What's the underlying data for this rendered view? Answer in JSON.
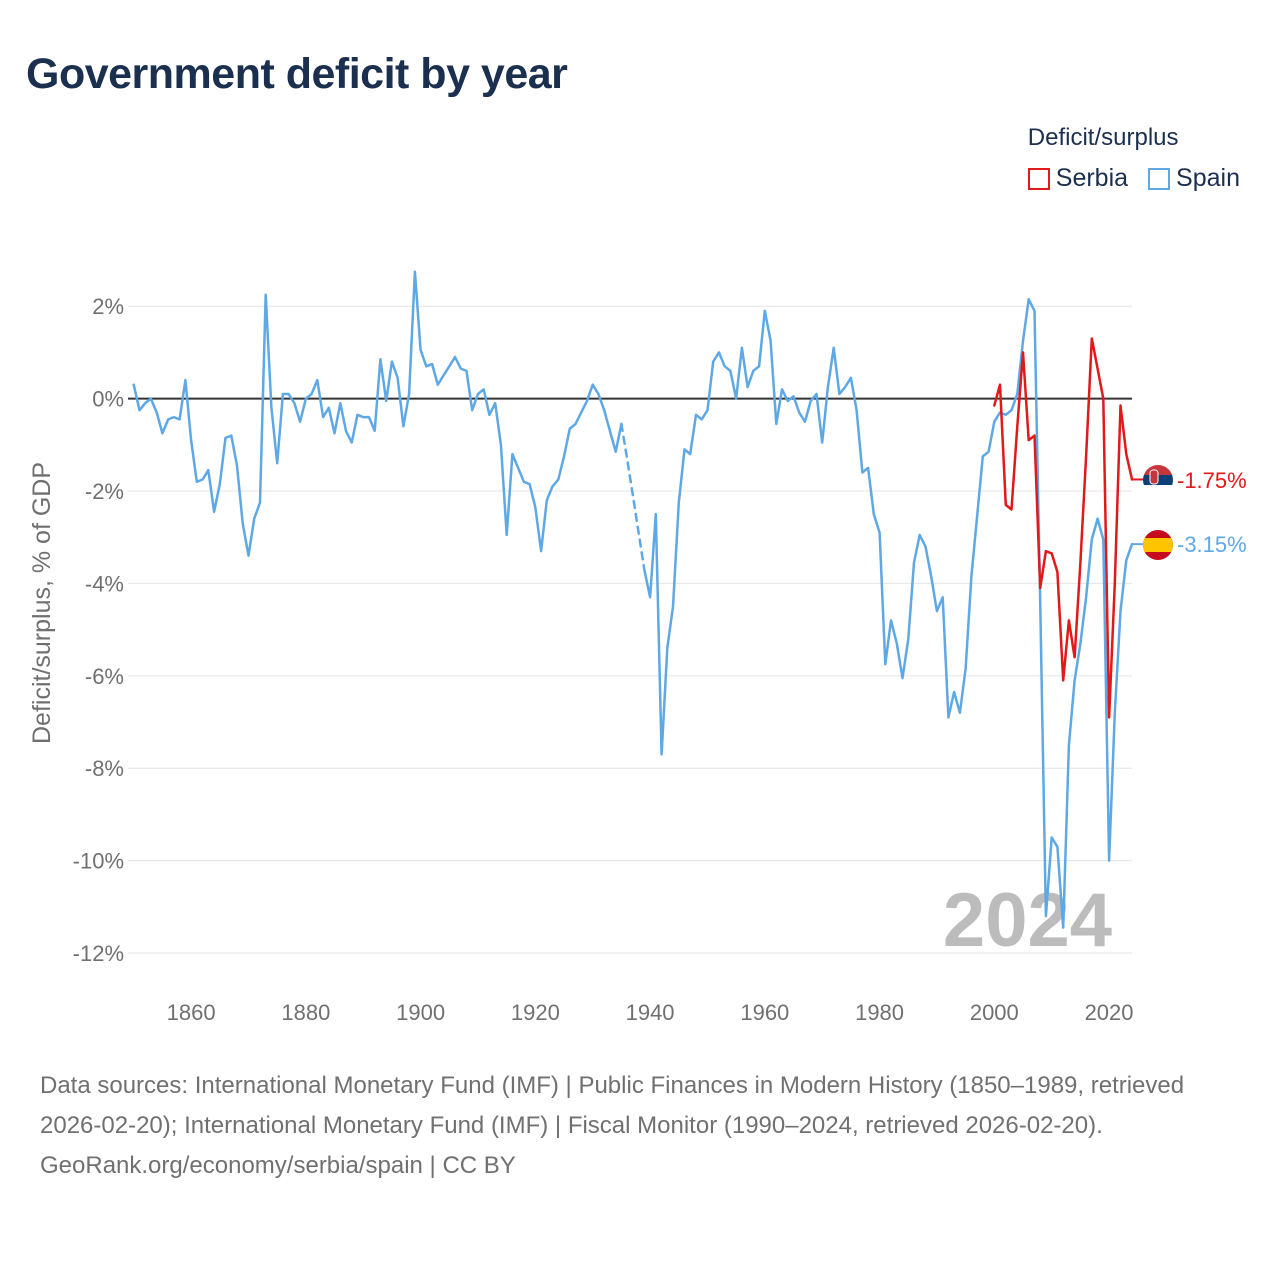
{
  "chart_data": {
    "type": "line",
    "title": "Government deficit by year",
    "ylabel": "Deficit/surplus, % of GDP",
    "xlabel": "",
    "xlim": [
      1849,
      2024
    ],
    "ylim": [
      -12.8,
      3.0
    ],
    "x_ticks": [
      1860,
      1880,
      1900,
      1920,
      1940,
      1960,
      1980,
      2000,
      2020
    ],
    "y_ticks": [
      2,
      0,
      -2,
      -4,
      -6,
      -8,
      -10,
      -12
    ],
    "x_tick_labels": [
      "1860",
      "1880",
      "1900",
      "1920",
      "1940",
      "1960",
      "1980",
      "2000",
      "2020"
    ],
    "y_tick_labels": [
      "2%",
      "0%",
      "-2%",
      "-4%",
      "-6%",
      "-8%",
      "-10%",
      "-12%"
    ],
    "watermark_year": "2024",
    "legend_title": "Deficit/surplus",
    "series": [
      {
        "name": "Serbia",
        "color": "#e0191a",
        "end_label": "-1.75%",
        "points": [
          [
            2000,
            -0.15
          ],
          [
            2001,
            0.3
          ],
          [
            2002,
            -2.3
          ],
          [
            2003,
            -2.4
          ],
          [
            2004,
            -0.6
          ],
          [
            2005,
            1.0
          ],
          [
            2006,
            -0.9
          ],
          [
            2007,
            -0.8
          ],
          [
            2008,
            -4.1
          ],
          [
            2009,
            -3.3
          ],
          [
            2010,
            -3.35
          ],
          [
            2011,
            -3.75
          ],
          [
            2012,
            -6.1
          ],
          [
            2013,
            -4.8
          ],
          [
            2014,
            -5.6
          ],
          [
            2015,
            -3.55
          ],
          [
            2016,
            -1.25
          ],
          [
            2017,
            1.3
          ],
          [
            2018,
            0.65
          ],
          [
            2019,
            0.0
          ],
          [
            2020,
            -6.9
          ],
          [
            2021,
            -4.0
          ],
          [
            2022,
            -0.15
          ],
          [
            2023,
            -1.2
          ],
          [
            2024,
            -1.75
          ]
        ]
      },
      {
        "name": "Spain",
        "color": "#5ea8e6",
        "end_label": "-3.15%",
        "points": [
          [
            1850,
            0.3
          ],
          [
            1851,
            -0.25
          ],
          [
            1852,
            -0.1
          ],
          [
            1853,
            0.0
          ],
          [
            1854,
            -0.3
          ],
          [
            1855,
            -0.75
          ],
          [
            1856,
            -0.45
          ],
          [
            1857,
            -0.4
          ],
          [
            1858,
            -0.45
          ],
          [
            1859,
            0.4
          ],
          [
            1860,
            -0.9
          ],
          [
            1861,
            -1.8
          ],
          [
            1862,
            -1.75
          ],
          [
            1863,
            -1.55
          ],
          [
            1864,
            -2.45
          ],
          [
            1865,
            -1.85
          ],
          [
            1866,
            -0.85
          ],
          [
            1867,
            -0.8
          ],
          [
            1868,
            -1.45
          ],
          [
            1869,
            -2.7
          ],
          [
            1870,
            -3.4
          ],
          [
            1871,
            -2.6
          ],
          [
            1872,
            -2.25
          ],
          [
            1873,
            2.25
          ],
          [
            1874,
            -0.2
          ],
          [
            1875,
            -1.4
          ],
          [
            1876,
            0.1
          ],
          [
            1877,
            0.1
          ],
          [
            1878,
            -0.1
          ],
          [
            1879,
            -0.5
          ],
          [
            1880,
            0.0
          ],
          [
            1881,
            0.1
          ],
          [
            1882,
            0.4
          ],
          [
            1883,
            -0.4
          ],
          [
            1884,
            -0.2
          ],
          [
            1885,
            -0.75
          ],
          [
            1886,
            -0.1
          ],
          [
            1887,
            -0.7
          ],
          [
            1888,
            -0.95
          ],
          [
            1889,
            -0.35
          ],
          [
            1890,
            -0.4
          ],
          [
            1891,
            -0.4
          ],
          [
            1892,
            -0.7
          ],
          [
            1893,
            0.85
          ],
          [
            1894,
            -0.05
          ],
          [
            1895,
            0.8
          ],
          [
            1896,
            0.45
          ],
          [
            1897,
            -0.6
          ],
          [
            1898,
            0.1
          ],
          [
            1899,
            2.75
          ],
          [
            1900,
            1.05
          ],
          [
            1901,
            0.7
          ],
          [
            1902,
            0.75
          ],
          [
            1903,
            0.3
          ],
          [
            1904,
            0.5
          ],
          [
            1905,
            0.7
          ],
          [
            1906,
            0.9
          ],
          [
            1907,
            0.65
          ],
          [
            1908,
            0.6
          ],
          [
            1909,
            -0.25
          ],
          [
            1910,
            0.1
          ],
          [
            1911,
            0.2
          ],
          [
            1912,
            -0.35
          ],
          [
            1913,
            -0.1
          ],
          [
            1914,
            -1.0
          ],
          [
            1915,
            -2.95
          ],
          [
            1916,
            -1.2
          ],
          [
            1917,
            -1.5
          ],
          [
            1918,
            -1.8
          ],
          [
            1919,
            -1.85
          ],
          [
            1920,
            -2.35
          ],
          [
            1921,
            -3.3
          ],
          [
            1922,
            -2.2
          ],
          [
            1923,
            -1.9
          ],
          [
            1924,
            -1.75
          ],
          [
            1925,
            -1.25
          ],
          [
            1926,
            -0.65
          ],
          [
            1927,
            -0.55
          ],
          [
            1928,
            -0.3
          ],
          [
            1929,
            -0.05
          ],
          [
            1930,
            0.3
          ],
          [
            1931,
            0.1
          ],
          [
            1932,
            -0.25
          ],
          [
            1933,
            -0.7
          ],
          [
            1934,
            -1.15
          ],
          [
            1935,
            -0.55
          ]
        ],
        "gap_points": [
          [
            1935,
            -0.55
          ],
          [
            1936,
            -1.3
          ],
          [
            1937,
            -2.1
          ],
          [
            1938,
            -2.9
          ],
          [
            1939,
            -3.7
          ]
        ],
        "points_after_gap": [
          [
            1939,
            -3.7
          ],
          [
            1940,
            -4.3
          ],
          [
            1941,
            -2.5
          ],
          [
            1942,
            -7.7
          ],
          [
            1943,
            -5.4
          ],
          [
            1944,
            -4.5
          ],
          [
            1945,
            -2.25
          ],
          [
            1946,
            -1.1
          ],
          [
            1947,
            -1.2
          ],
          [
            1948,
            -0.35
          ],
          [
            1949,
            -0.45
          ],
          [
            1950,
            -0.25
          ],
          [
            1951,
            0.8
          ],
          [
            1952,
            1.0
          ],
          [
            1953,
            0.7
          ],
          [
            1954,
            0.6
          ],
          [
            1955,
            0.0
          ],
          [
            1956,
            1.1
          ],
          [
            1957,
            0.25
          ],
          [
            1958,
            0.6
          ],
          [
            1959,
            0.7
          ],
          [
            1960,
            1.9
          ],
          [
            1961,
            1.25
          ],
          [
            1962,
            -0.55
          ],
          [
            1963,
            0.2
          ],
          [
            1964,
            -0.05
          ],
          [
            1965,
            0.05
          ],
          [
            1966,
            -0.3
          ],
          [
            1967,
            -0.5
          ],
          [
            1968,
            -0.05
          ],
          [
            1969,
            0.1
          ],
          [
            1970,
            -0.95
          ],
          [
            1971,
            0.25
          ],
          [
            1972,
            1.1
          ],
          [
            1973,
            0.1
          ],
          [
            1974,
            0.25
          ],
          [
            1975,
            0.45
          ],
          [
            1976,
            -0.25
          ],
          [
            1977,
            -1.6
          ],
          [
            1978,
            -1.5
          ],
          [
            1979,
            -2.5
          ],
          [
            1980,
            -2.9
          ],
          [
            1981,
            -5.75
          ],
          [
            1982,
            -4.8
          ],
          [
            1983,
            -5.3
          ],
          [
            1984,
            -6.05
          ],
          [
            1985,
            -5.2
          ],
          [
            1986,
            -3.55
          ],
          [
            1987,
            -2.95
          ],
          [
            1988,
            -3.2
          ],
          [
            1989,
            -3.85
          ],
          [
            1990,
            -4.6
          ],
          [
            1991,
            -4.3
          ],
          [
            1992,
            -6.9
          ],
          [
            1993,
            -6.35
          ],
          [
            1994,
            -6.8
          ],
          [
            1995,
            -5.85
          ],
          [
            1996,
            -3.85
          ],
          [
            1997,
            -2.55
          ],
          [
            1998,
            -1.25
          ],
          [
            1999,
            -1.15
          ],
          [
            2000,
            -0.5
          ],
          [
            2001,
            -0.3
          ],
          [
            2002,
            -0.35
          ],
          [
            2003,
            -0.25
          ],
          [
            2004,
            0.1
          ],
          [
            2005,
            1.25
          ],
          [
            2006,
            2.15
          ],
          [
            2007,
            1.9
          ],
          [
            2008,
            -4.4
          ],
          [
            2009,
            -11.2
          ],
          [
            2010,
            -9.5
          ],
          [
            2011,
            -9.7
          ],
          [
            2012,
            -11.45
          ],
          [
            2013,
            -7.5
          ],
          [
            2014,
            -6.1
          ],
          [
            2015,
            -5.3
          ],
          [
            2016,
            -4.3
          ],
          [
            2017,
            -3.05
          ],
          [
            2018,
            -2.6
          ],
          [
            2019,
            -3.05
          ],
          [
            2020,
            -10.0
          ],
          [
            2021,
            -6.8
          ],
          [
            2022,
            -4.6
          ],
          [
            2023,
            -3.5
          ],
          [
            2024,
            -3.15
          ]
        ]
      }
    ]
  },
  "legend": {
    "title": "Deficit/surplus",
    "items": [
      {
        "label": "Serbia",
        "color": "#e0191a"
      },
      {
        "label": "Spain",
        "color": "#5ea8e6"
      }
    ]
  },
  "footer": {
    "sources": "Data sources: International Monetary Fund (IMF) | Public Finances in Modern History (1850–1989, retrieved 2026-02-20); International Monetary Fund (IMF) | Fiscal Monitor (1990–2024, retrieved 2026-02-20).",
    "credit": "GeoRank.org/economy/serbia/spain | CC BY"
  }
}
